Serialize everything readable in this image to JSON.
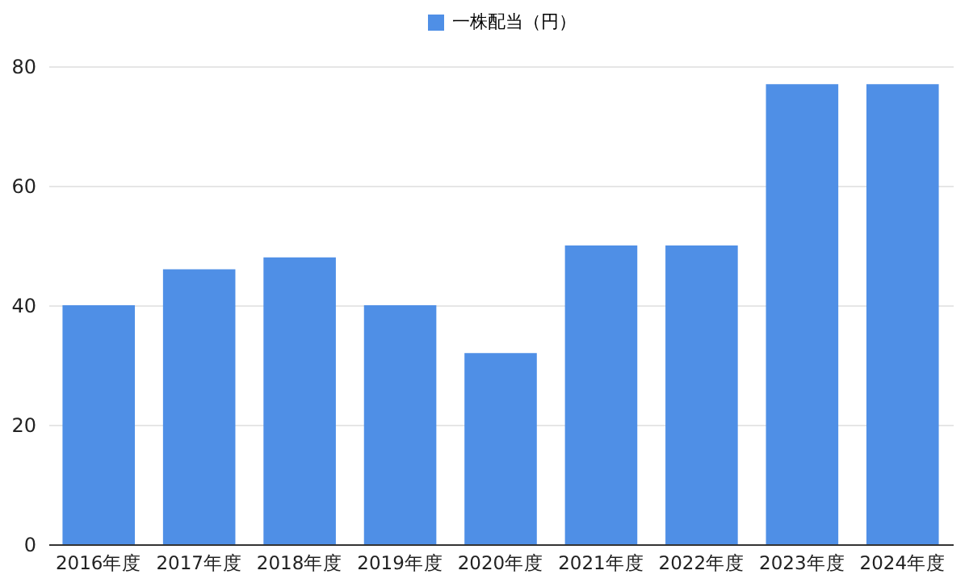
{
  "chart_data": {
    "type": "bar",
    "categories": [
      "2016年度",
      "2017年度",
      "2018年度",
      "2019年度",
      "2020年度",
      "2021年度",
      "2022年度",
      "2023年度",
      "2024年度"
    ],
    "series": [
      {
        "name": "一株配当（円）",
        "color": "#4f8fe6",
        "values": [
          40,
          46,
          48,
          40,
          32,
          50,
          50,
          77,
          77
        ]
      }
    ],
    "ylim": [
      0,
      80
    ],
    "yticks": [
      0,
      20,
      40,
      60,
      80
    ],
    "grid": "y",
    "legend": "top"
  }
}
